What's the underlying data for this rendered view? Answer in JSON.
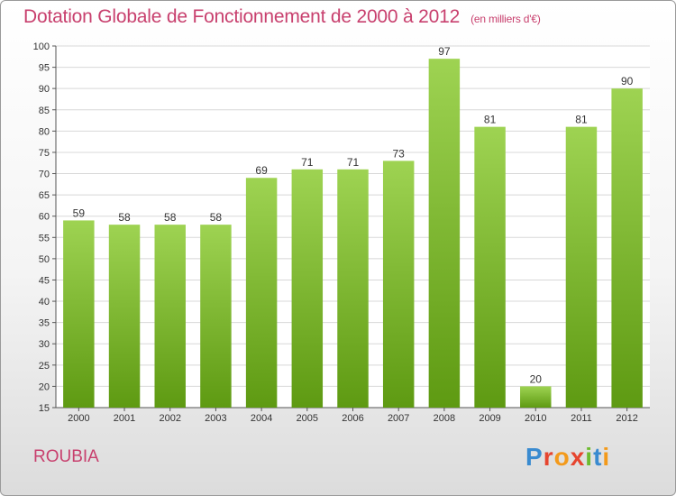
{
  "header": {
    "title": "Dotation Globale de Fonctionnement de 2000 à 2012",
    "unit_note": "(en milliers d'€)"
  },
  "footer": {
    "commune": "ROUBIA",
    "logo_text": "Proxiti"
  },
  "colors": {
    "title": "#c8406e",
    "bar_top": "#9ed352",
    "bar_bottom": "#5e9a12",
    "grid": "#d8d8d8"
  },
  "chart_data": {
    "type": "bar",
    "title": "Dotation Globale de Fonctionnement de 2000 à 2012",
    "subtitle": "(en milliers d'€)",
    "categories": [
      "2000",
      "2001",
      "2002",
      "2003",
      "2004",
      "2005",
      "2006",
      "2007",
      "2008",
      "2009",
      "2010",
      "2011",
      "2012"
    ],
    "values": [
      59,
      58,
      58,
      58,
      69,
      71,
      71,
      73,
      97,
      81,
      20,
      81,
      90
    ],
    "ylim": [
      15,
      100
    ],
    "yticks": [
      15,
      20,
      25,
      30,
      35,
      40,
      45,
      50,
      55,
      60,
      65,
      70,
      75,
      80,
      85,
      90,
      95,
      100
    ],
    "grid": true,
    "data_labels": true
  }
}
